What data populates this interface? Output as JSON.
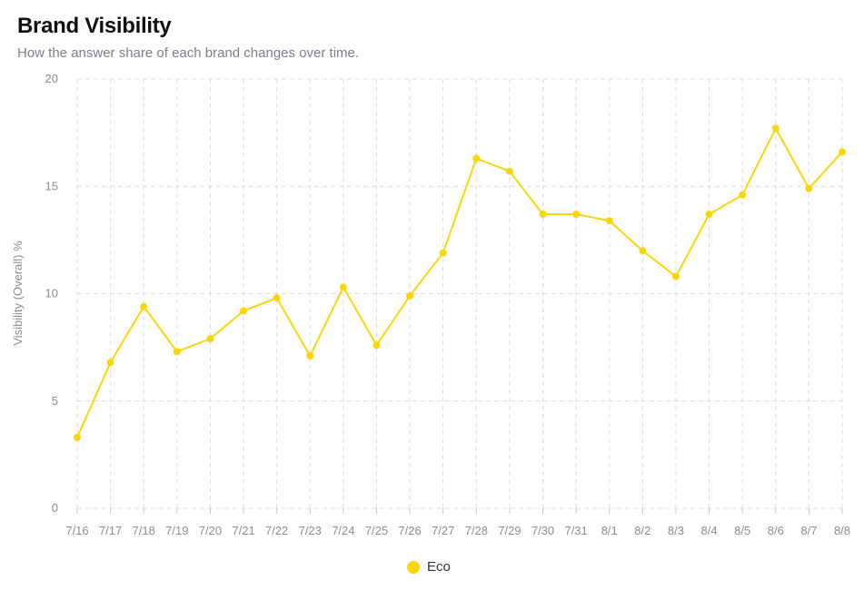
{
  "header": {
    "title": "Brand Visibility",
    "subtitle": "How the answer share of each brand changes over time."
  },
  "chart_data": {
    "type": "line",
    "title": "Brand Visibility",
    "subtitle": "How the answer share of each brand changes over time.",
    "xlabel": "",
    "ylabel": "Visibility (Overall) %",
    "ylim": [
      0,
      20
    ],
    "yticks": [
      0,
      5,
      10,
      15,
      20
    ],
    "grid": true,
    "legend_position": "bottom",
    "categories": [
      "7/16",
      "7/17",
      "7/18",
      "7/19",
      "7/20",
      "7/21",
      "7/22",
      "7/23",
      "7/24",
      "7/25",
      "7/26",
      "7/27",
      "7/28",
      "7/29",
      "7/30",
      "7/31",
      "8/1",
      "8/2",
      "8/3",
      "8/4",
      "8/5",
      "8/6",
      "8/7",
      "8/8"
    ],
    "series": [
      {
        "name": "Eco",
        "color": "#F9D608",
        "values": [
          3.3,
          6.8,
          9.4,
          7.3,
          7.9,
          9.2,
          9.8,
          7.1,
          10.3,
          7.6,
          9.9,
          11.9,
          16.3,
          15.7,
          13.7,
          13.7,
          13.4,
          12.0,
          10.8,
          13.7,
          14.6,
          17.7,
          14.9,
          16.6
        ]
      }
    ]
  }
}
